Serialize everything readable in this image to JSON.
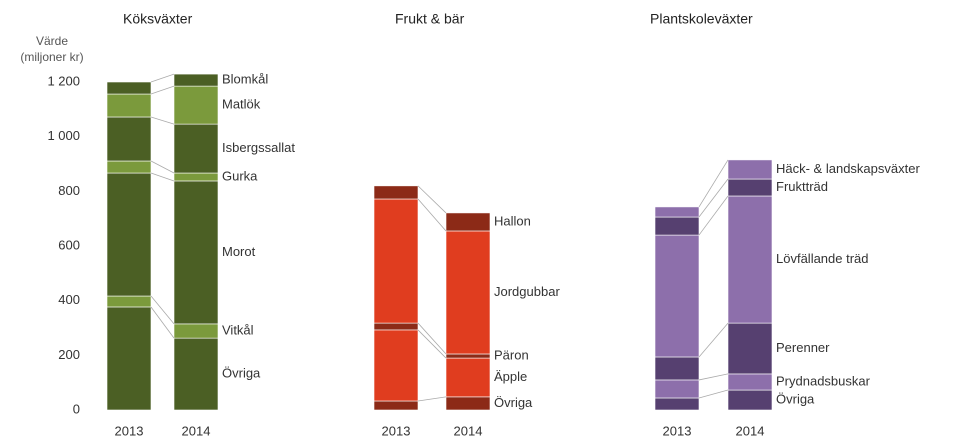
{
  "chart_data": [
    {
      "type": "bar",
      "stacked": true,
      "title": "Köksväxter",
      "y_label": [
        "Värde",
        "(miljoner kr)"
      ],
      "categories": [
        "2013",
        "2014"
      ],
      "ylim": [
        0,
        1200
      ],
      "yticks": [
        0,
        200,
        400,
        600,
        800,
        {
          "value": 1000,
          "label": "1 000"
        },
        {
          "value": 1200,
          "label": "1 200"
        }
      ],
      "series": [
        {
          "name": "Övriga",
          "color": "#4b5f24",
          "values": [
            377,
            263
          ]
        },
        {
          "name": "Vitkål",
          "color": "#7b9a3c",
          "values": [
            40,
            52
          ]
        },
        {
          "name": "Morot",
          "color": "#4b5f24",
          "values": [
            450,
            523
          ]
        },
        {
          "name": "Gurka",
          "color": "#7b9a3c",
          "values": [
            44,
            29
          ]
        },
        {
          "name": "Isbergssallat",
          "color": "#4b5f24",
          "values": [
            161,
            179
          ]
        },
        {
          "name": "Matlök",
          "color": "#7b9a3c",
          "values": [
            84,
            139
          ]
        },
        {
          "name": "Blomkål",
          "color": "#4b5f24",
          "values": [
            44,
            44
          ]
        }
      ]
    },
    {
      "type": "bar",
      "stacked": true,
      "title": "Frukt & bär",
      "categories": [
        "2013",
        "2014"
      ],
      "ylim": [
        0,
        1200
      ],
      "series": [
        {
          "name": "Övriga",
          "color": "#8c2a17",
          "values": [
            33,
            48
          ]
        },
        {
          "name": "Äpple",
          "color": "#e03d1f",
          "values": [
            260,
            142
          ]
        },
        {
          "name": "Päron",
          "color": "#8c2a17",
          "values": [
            25,
            15
          ]
        },
        {
          "name": "Jordgubbar",
          "color": "#e03d1f",
          "values": [
            454,
            450
          ]
        },
        {
          "name": "Hallon",
          "color": "#8c2a17",
          "values": [
            48,
            66
          ]
        }
      ]
    },
    {
      "type": "bar",
      "stacked": true,
      "title": "Plantskoleväxter",
      "categories": [
        "2013",
        "2014"
      ],
      "ylim": [
        0,
        1200
      ],
      "series": [
        {
          "name": "Övriga",
          "color": "#564070",
          "values": [
            44,
            73
          ]
        },
        {
          "name": "Prydnadsbuskar",
          "color": "#8d6fab",
          "values": [
            66,
            59
          ]
        },
        {
          "name": "Perenner",
          "color": "#564070",
          "values": [
            84,
            186
          ]
        },
        {
          "name": "Lövfällande träd",
          "color": "#8d6fab",
          "values": [
            446,
            465
          ]
        },
        {
          "name": "Fruktträd",
          "color": "#564070",
          "values": [
            66,
            62
          ]
        },
        {
          "name": "Häck- & landskapsväxter",
          "color": "#8d6fab",
          "values": [
            37,
            70
          ]
        }
      ]
    }
  ]
}
